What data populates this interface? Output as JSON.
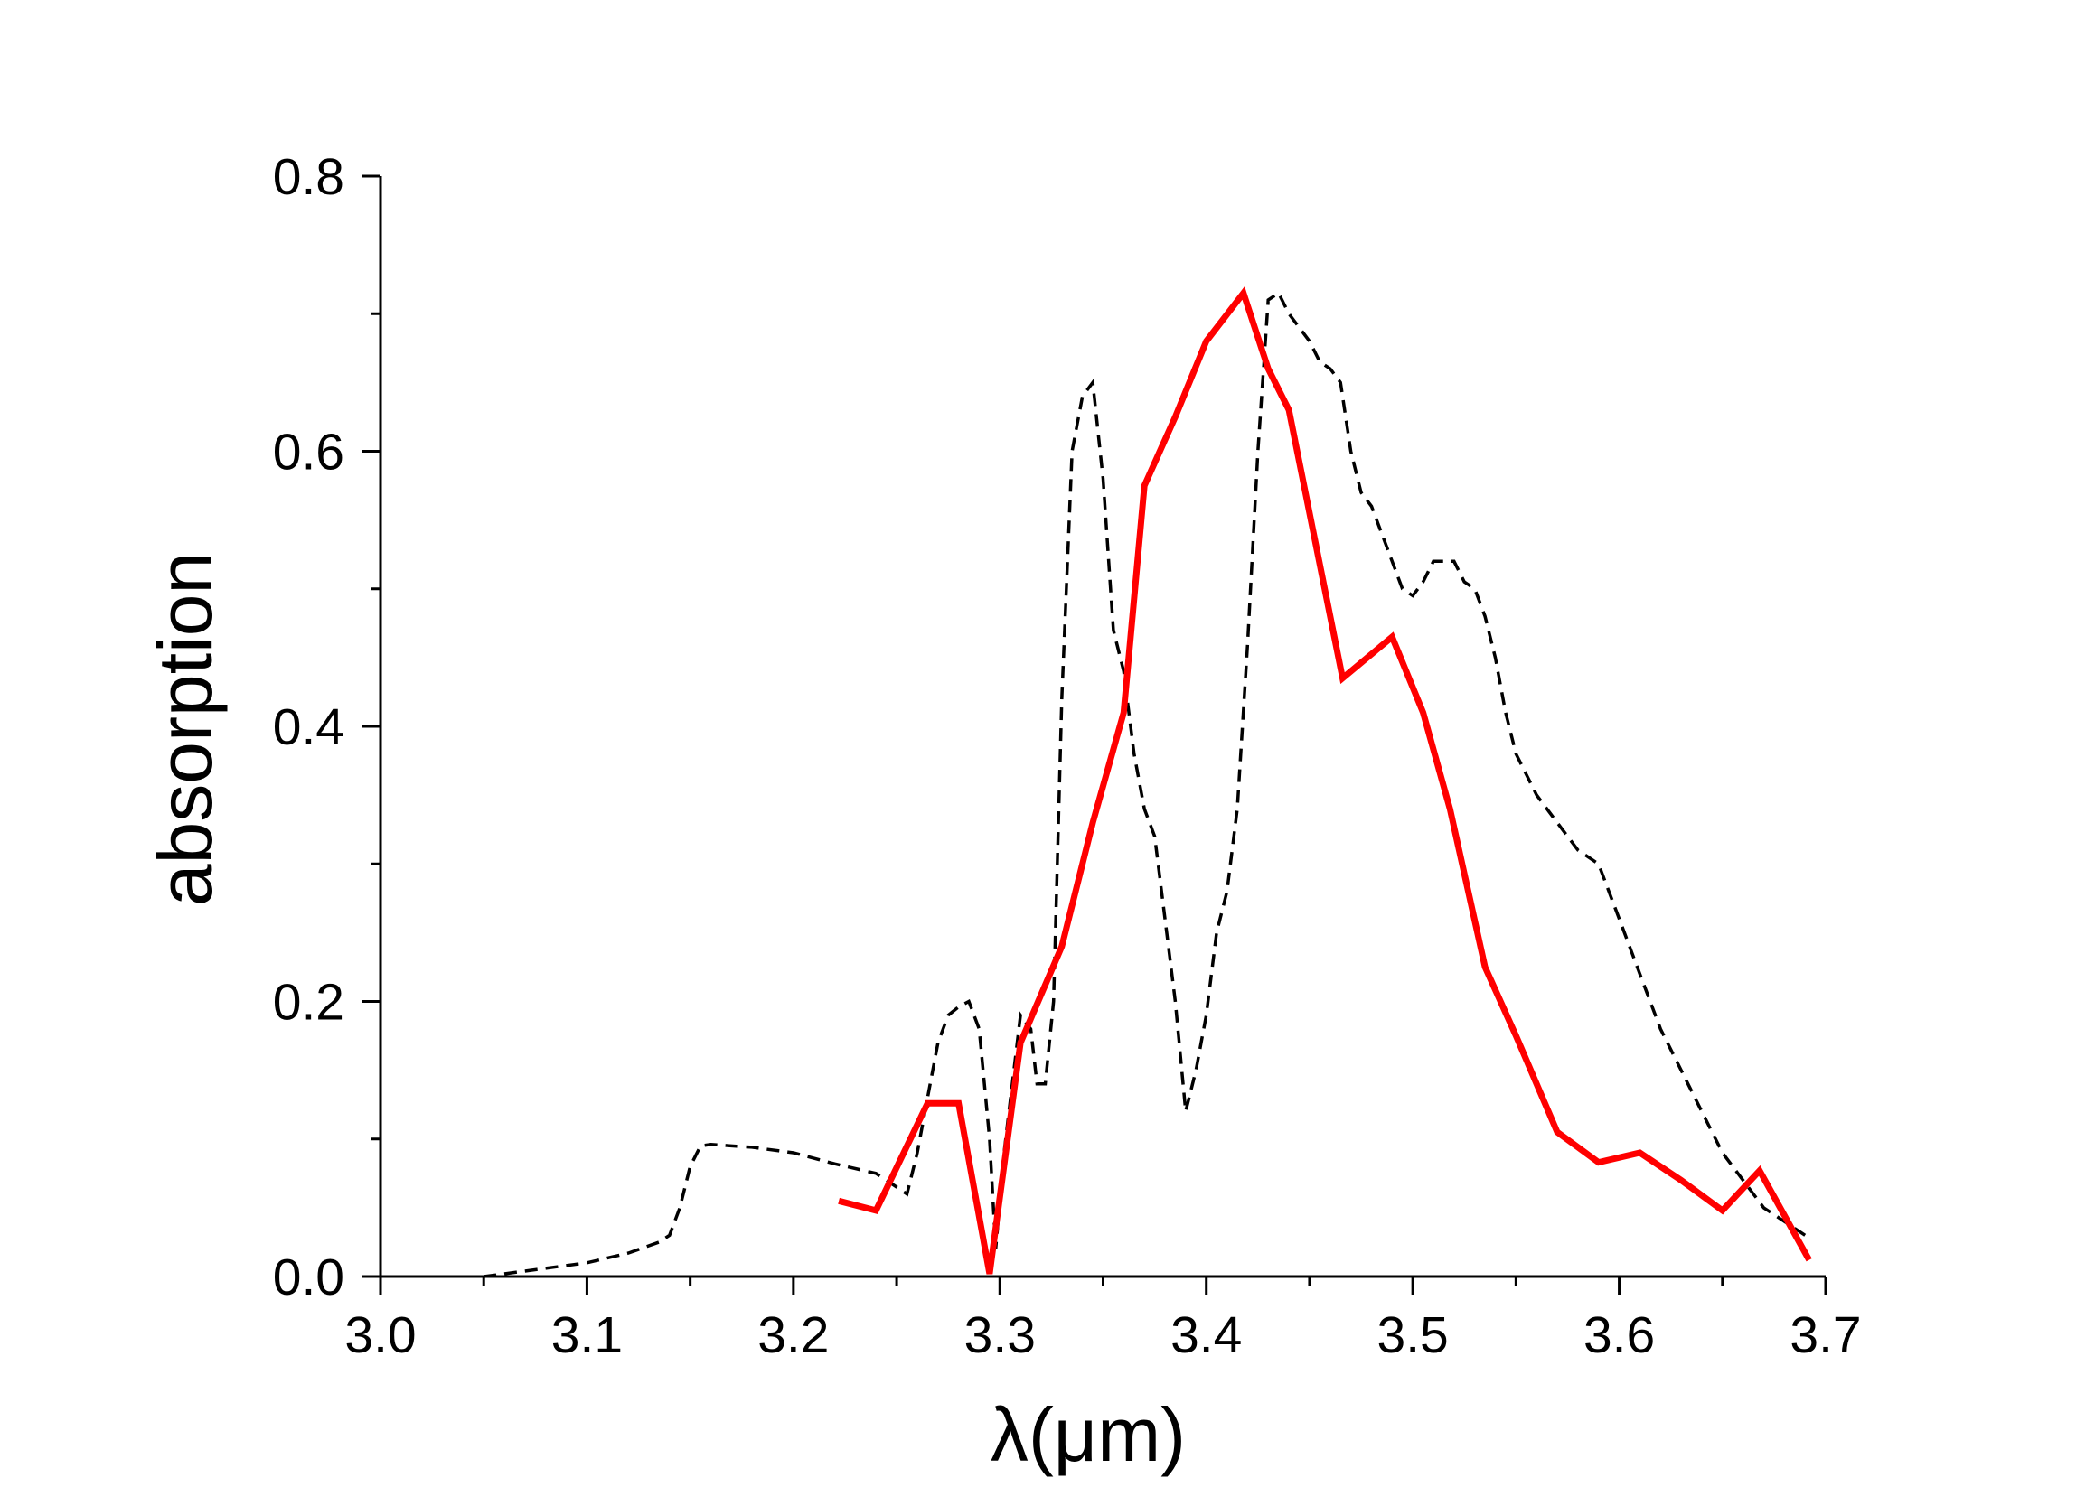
{
  "chart_data": {
    "type": "line",
    "xlabel": "λ(μm)",
    "ylabel": "absorption",
    "xlim": [
      3.0,
      3.7
    ],
    "ylim": [
      0.0,
      0.8
    ],
    "x_ticks": [
      "3.0",
      "3.1",
      "3.2",
      "3.3",
      "3.4",
      "3.5",
      "3.6",
      "3.7"
    ],
    "y_ticks": [
      "0.0",
      "0.2",
      "0.4",
      "0.6",
      "0.8"
    ],
    "grid": false,
    "colors": {
      "solid": "#ff0000",
      "dashed": "#000000"
    },
    "series": [
      {
        "style": "dashed",
        "color": "#000000",
        "x": [
          3.05,
          3.06,
          3.08,
          3.1,
          3.12,
          3.135,
          3.14,
          3.145,
          3.15,
          3.155,
          3.16,
          3.17,
          3.18,
          3.2,
          3.22,
          3.24,
          3.25,
          3.255,
          3.26,
          3.265,
          3.27,
          3.275,
          3.28,
          3.285,
          3.29,
          3.295,
          3.298,
          3.302,
          3.306,
          3.31,
          3.315,
          3.318,
          3.322,
          3.326,
          3.33,
          3.335,
          3.34,
          3.345,
          3.35,
          3.355,
          3.36,
          3.365,
          3.37,
          3.375,
          3.38,
          3.385,
          3.39,
          3.395,
          3.4,
          3.405,
          3.41,
          3.415,
          3.42,
          3.425,
          3.43,
          3.435,
          3.44,
          3.445,
          3.45,
          3.455,
          3.46,
          3.465,
          3.47,
          3.475,
          3.48,
          3.485,
          3.49,
          3.495,
          3.5,
          3.505,
          3.51,
          3.515,
          3.52,
          3.525,
          3.53,
          3.535,
          3.54,
          3.545,
          3.55,
          3.56,
          3.57,
          3.58,
          3.59,
          3.6,
          3.61,
          3.62,
          3.63,
          3.64,
          3.65,
          3.66,
          3.67,
          3.68,
          3.69
        ],
        "y": [
          0.0,
          0.002,
          0.006,
          0.01,
          0.017,
          0.025,
          0.03,
          0.05,
          0.08,
          0.095,
          0.096,
          0.095,
          0.094,
          0.09,
          0.082,
          0.075,
          0.065,
          0.06,
          0.09,
          0.13,
          0.17,
          0.19,
          0.196,
          0.2,
          0.18,
          0.1,
          0.02,
          0.09,
          0.14,
          0.19,
          0.18,
          0.14,
          0.14,
          0.2,
          0.42,
          0.6,
          0.64,
          0.65,
          0.58,
          0.47,
          0.44,
          0.38,
          0.34,
          0.32,
          0.26,
          0.2,
          0.12,
          0.15,
          0.19,
          0.25,
          0.28,
          0.34,
          0.46,
          0.6,
          0.71,
          0.715,
          0.7,
          0.69,
          0.68,
          0.665,
          0.66,
          0.65,
          0.6,
          0.57,
          0.56,
          0.54,
          0.52,
          0.5,
          0.495,
          0.505,
          0.52,
          0.52,
          0.52,
          0.505,
          0.5,
          0.48,
          0.45,
          0.41,
          0.38,
          0.35,
          0.33,
          0.31,
          0.3,
          0.26,
          0.22,
          0.18,
          0.15,
          0.12,
          0.09,
          0.07,
          0.05,
          0.04,
          0.03
        ]
      },
      {
        "style": "solid",
        "color": "#ff0000",
        "x": [
          3.222,
          3.24,
          3.265,
          3.28,
          3.295,
          3.31,
          3.33,
          3.345,
          3.36,
          3.37,
          3.385,
          3.4,
          3.418,
          3.43,
          3.44,
          3.452,
          3.466,
          3.49,
          3.505,
          3.518,
          3.535,
          3.55,
          3.57,
          3.59,
          3.61,
          3.63,
          3.65,
          3.668,
          3.692
        ],
        "y": [
          0.055,
          0.048,
          0.126,
          0.126,
          0.002,
          0.17,
          0.24,
          0.33,
          0.41,
          0.575,
          0.625,
          0.68,
          0.715,
          0.66,
          0.63,
          0.54,
          0.435,
          0.465,
          0.41,
          0.34,
          0.225,
          0.175,
          0.105,
          0.083,
          0.09,
          0.07,
          0.048,
          0.077,
          0.012
        ]
      }
    ]
  }
}
